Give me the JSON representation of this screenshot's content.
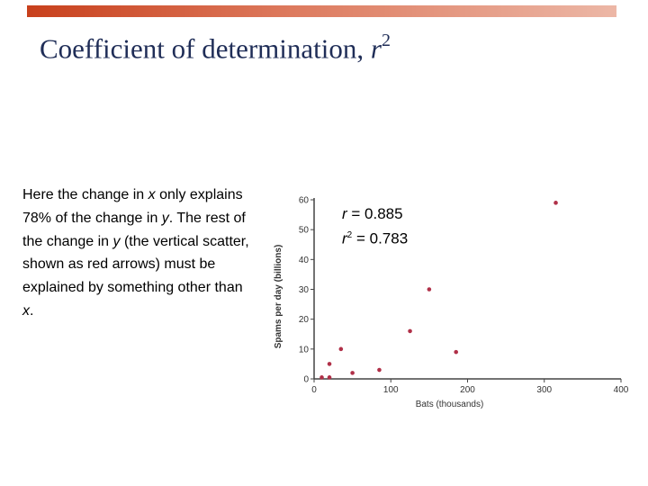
{
  "slide": {
    "title_text": "Coefficient of determination, ",
    "title_var": "r",
    "title_sup": "2",
    "accent_color": "#c8401c"
  },
  "body": {
    "p1": "Here the change in ",
    "x1": "x",
    "p2": " only explains 78% of the change in ",
    "y1": "y",
    "p3": ". The rest of the change in ",
    "y2": "y",
    "p4": " (the vertical scatter, shown as red arrows) must be explained by something other than ",
    "x2": "x",
    "p5": "."
  },
  "stats": {
    "r_var": "r",
    "r_rest": " = 0.885",
    "r2_var": "r",
    "r2_sup": "2",
    "r2_rest": " = 0.783"
  },
  "chart_data": {
    "type": "scatter",
    "xlabel": "Bats (thousands)",
    "ylabel": "Spams per day (billions)",
    "xlim": [
      0,
      400
    ],
    "ylim": [
      0,
      60
    ],
    "xticks": [
      0,
      100,
      200,
      300,
      400
    ],
    "yticks": [
      0,
      10,
      20,
      30,
      40,
      50,
      60
    ],
    "point_color": "#b03048",
    "points": [
      {
        "x": 10,
        "y": 0.5
      },
      {
        "x": 20,
        "y": 0.5
      },
      {
        "x": 20,
        "y": 5
      },
      {
        "x": 35,
        "y": 10
      },
      {
        "x": 50,
        "y": 2
      },
      {
        "x": 85,
        "y": 3
      },
      {
        "x": 125,
        "y": 16
      },
      {
        "x": 150,
        "y": 30
      },
      {
        "x": 185,
        "y": 9
      },
      {
        "x": 315,
        "y": 59
      }
    ]
  }
}
